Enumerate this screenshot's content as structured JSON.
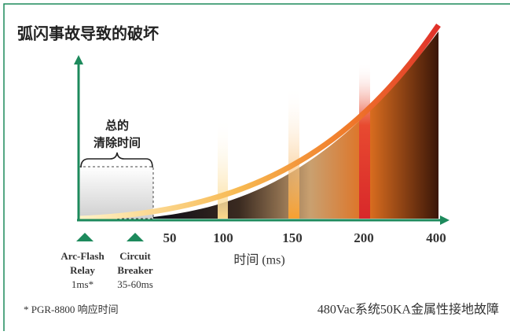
{
  "header": {
    "title": "弧闪事故导致的破坏"
  },
  "clearing_time": {
    "line1": "总的",
    "line2": "清除时间"
  },
  "x_axis": {
    "ticks": [
      50,
      100,
      150,
      200,
      400
    ],
    "label": "时间 (ms)"
  },
  "devices": [
    {
      "name1": "Arc-Flash",
      "name2": "Relay",
      "time": "1ms*"
    },
    {
      "name1": "Circuit",
      "name2": "Breaker",
      "time": "35-60ms"
    }
  ],
  "footnote": "* PGR-8800 响应时间",
  "caption": "480Vac系统50KA金属性接地故障"
}
